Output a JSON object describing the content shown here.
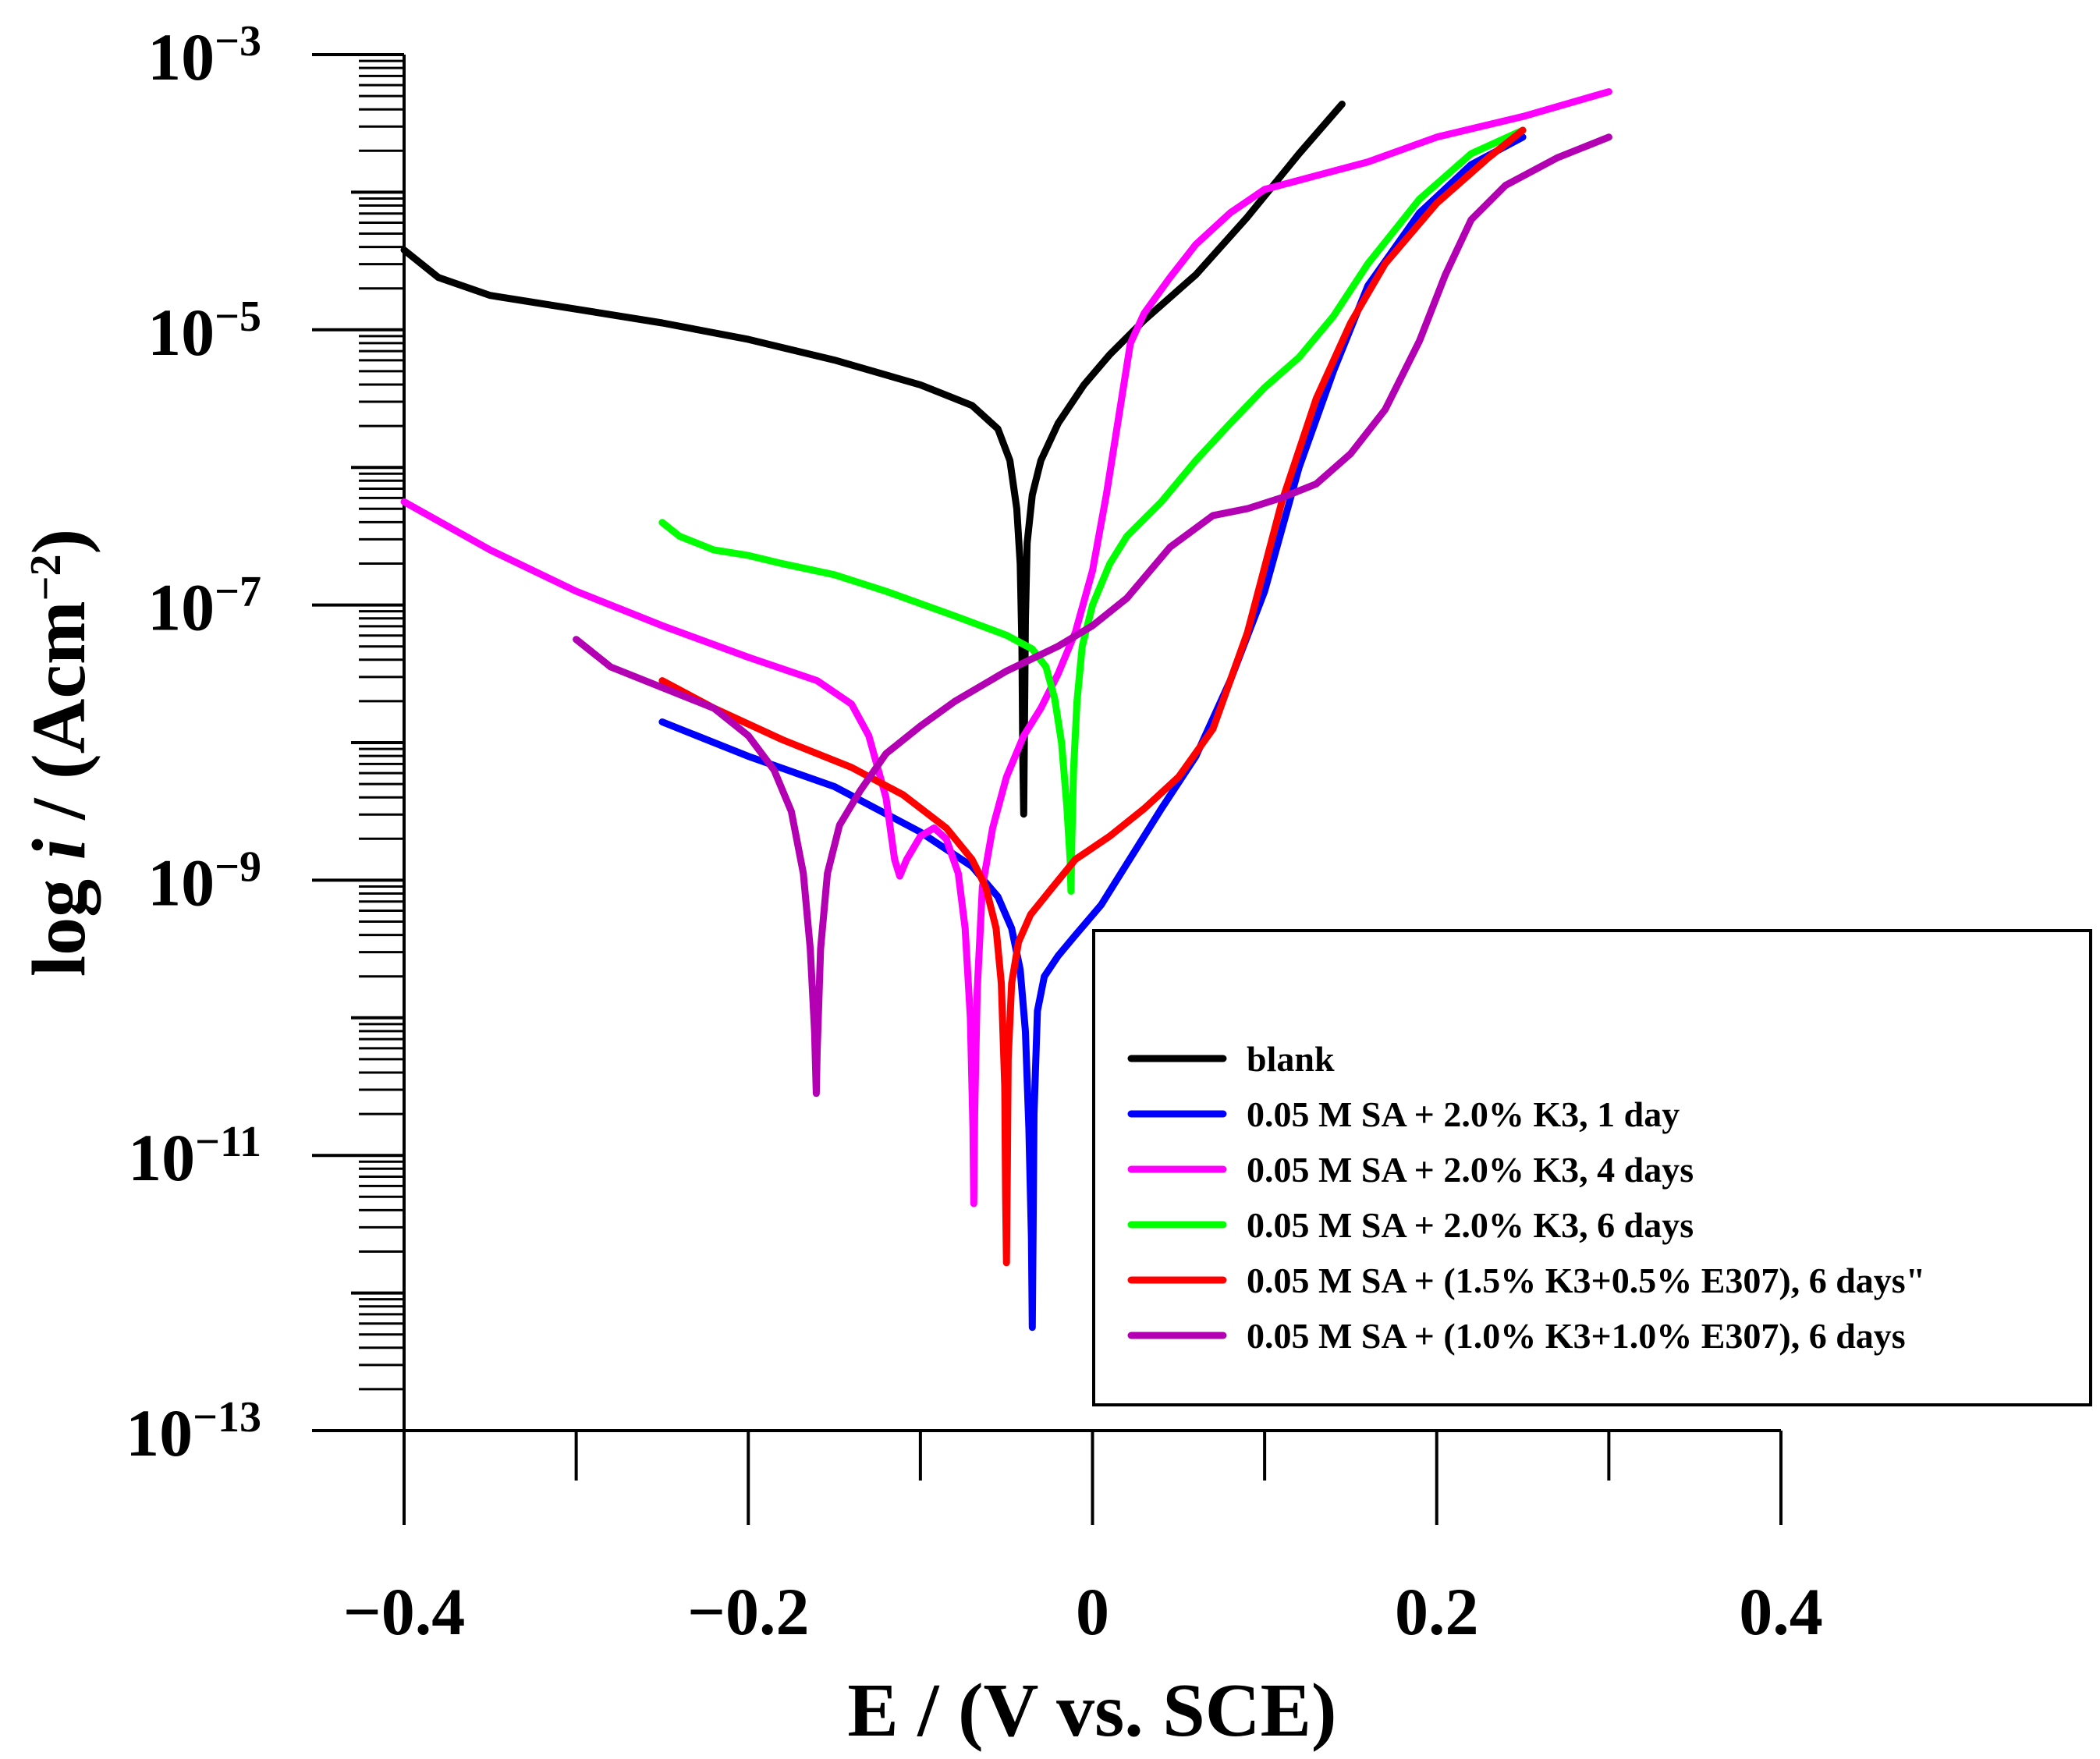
{
  "chart_data": {
    "type": "line",
    "title": "",
    "xlabel": "E / (V vs. SCE)",
    "ylabel_prefix": "log ",
    "ylabel_italic": "i",
    "ylabel_mid": " / (Acm",
    "ylabel_sup": "−2",
    "ylabel_suffix": ")",
    "xlim": [
      -0.4,
      0.4
    ],
    "ylim": [
      -13,
      -3
    ],
    "yscale": "log",
    "x_ticks": [
      -0.4,
      -0.2,
      0,
      0.2,
      0.4
    ],
    "x_tick_labels": [
      "−0.4",
      "−0.2",
      "0",
      "0.2",
      "0.4"
    ],
    "y_tick_exponents": [
      -3,
      -5,
      -7,
      -9,
      -11,
      -13
    ],
    "y_tick_labels": [
      {
        "base": "10",
        "exp": "−3"
      },
      {
        "base": "10",
        "exp": "−5"
      },
      {
        "base": "10",
        "exp": "−7"
      },
      {
        "base": "10",
        "exp": "−9"
      },
      {
        "base": "10",
        "exp": "−11"
      },
      {
        "base": "10",
        "exp": "−13"
      }
    ],
    "legend_position": "bottom-right",
    "series": [
      {
        "name": "blank",
        "color": "#000000",
        "points": [
          [
            -0.4,
            -4.42
          ],
          [
            -0.38,
            -4.62
          ],
          [
            -0.35,
            -4.75
          ],
          [
            -0.3,
            -4.85
          ],
          [
            -0.25,
            -4.95
          ],
          [
            -0.2,
            -5.07
          ],
          [
            -0.15,
            -5.22
          ],
          [
            -0.1,
            -5.4
          ],
          [
            -0.07,
            -5.55
          ],
          [
            -0.055,
            -5.72
          ],
          [
            -0.048,
            -5.95
          ],
          [
            -0.044,
            -6.3
          ],
          [
            -0.042,
            -6.7
          ],
          [
            -0.041,
            -7.3
          ],
          [
            -0.0405,
            -8.1
          ],
          [
            -0.04,
            -8.52
          ],
          [
            -0.0395,
            -7.8
          ],
          [
            -0.039,
            -7.1
          ],
          [
            -0.038,
            -6.55
          ],
          [
            -0.035,
            -6.2
          ],
          [
            -0.03,
            -5.95
          ],
          [
            -0.02,
            -5.68
          ],
          [
            -0.005,
            -5.4
          ],
          [
            0.01,
            -5.18
          ],
          [
            0.03,
            -4.93
          ],
          [
            0.06,
            -4.6
          ],
          [
            0.09,
            -4.18
          ],
          [
            0.12,
            -3.72
          ],
          [
            0.145,
            -3.36
          ]
        ]
      },
      {
        "name": "0.05 M SA + 2.0% K3, 1 day",
        "color": "#0000ff",
        "points": [
          [
            -0.25,
            -7.85
          ],
          [
            -0.2,
            -8.1
          ],
          [
            -0.15,
            -8.32
          ],
          [
            -0.1,
            -8.65
          ],
          [
            -0.07,
            -8.9
          ],
          [
            -0.055,
            -9.12
          ],
          [
            -0.047,
            -9.35
          ],
          [
            -0.042,
            -9.65
          ],
          [
            -0.039,
            -10.1
          ],
          [
            -0.037,
            -10.8
          ],
          [
            -0.0355,
            -11.6
          ],
          [
            -0.035,
            -12.25
          ],
          [
            -0.0345,
            -11.5
          ],
          [
            -0.034,
            -10.7
          ],
          [
            -0.032,
            -9.95
          ],
          [
            -0.028,
            -9.7
          ],
          [
            -0.02,
            -9.55
          ],
          [
            -0.01,
            -9.4
          ],
          [
            0.005,
            -9.18
          ],
          [
            0.02,
            -8.88
          ],
          [
            0.04,
            -8.48
          ],
          [
            0.06,
            -8.1
          ],
          [
            0.08,
            -7.55
          ],
          [
            0.1,
            -6.9
          ],
          [
            0.12,
            -6.0
          ],
          [
            0.14,
            -5.3
          ],
          [
            0.16,
            -4.68
          ],
          [
            0.19,
            -4.15
          ],
          [
            0.22,
            -3.8
          ],
          [
            0.25,
            -3.6
          ]
        ]
      },
      {
        "name": "0.05 M SA + 2.0% K3, 4 days",
        "color": "#ff00ff",
        "points": [
          [
            -0.4,
            -6.25
          ],
          [
            -0.35,
            -6.6
          ],
          [
            -0.3,
            -6.9
          ],
          [
            -0.25,
            -7.15
          ],
          [
            -0.2,
            -7.38
          ],
          [
            -0.16,
            -7.55
          ],
          [
            -0.14,
            -7.72
          ],
          [
            -0.13,
            -7.95
          ],
          [
            -0.12,
            -8.4
          ],
          [
            -0.115,
            -8.85
          ],
          [
            -0.112,
            -8.97
          ],
          [
            -0.108,
            -8.85
          ],
          [
            -0.1,
            -8.68
          ],
          [
            -0.092,
            -8.62
          ],
          [
            -0.085,
            -8.7
          ],
          [
            -0.078,
            -8.95
          ],
          [
            -0.074,
            -9.35
          ],
          [
            -0.071,
            -10.0
          ],
          [
            -0.0695,
            -10.8
          ],
          [
            -0.069,
            -11.35
          ],
          [
            -0.0685,
            -10.7
          ],
          [
            -0.067,
            -9.8
          ],
          [
            -0.064,
            -9.05
          ],
          [
            -0.058,
            -8.62
          ],
          [
            -0.05,
            -8.25
          ],
          [
            -0.04,
            -7.95
          ],
          [
            -0.03,
            -7.75
          ],
          [
            -0.02,
            -7.5
          ],
          [
            -0.01,
            -7.2
          ],
          [
            0.0,
            -6.75
          ],
          [
            0.008,
            -6.2
          ],
          [
            0.015,
            -5.65
          ],
          [
            0.022,
            -5.1
          ],
          [
            0.03,
            -4.88
          ],
          [
            0.045,
            -4.62
          ],
          [
            0.06,
            -4.38
          ],
          [
            0.08,
            -4.15
          ],
          [
            0.1,
            -3.98
          ],
          [
            0.13,
            -3.88
          ],
          [
            0.16,
            -3.78
          ],
          [
            0.2,
            -3.6
          ],
          [
            0.25,
            -3.45
          ],
          [
            0.3,
            -3.27
          ]
        ]
      },
      {
        "name": "0.05 M SA + 2.0% K3, 6 days",
        "color": "#00ff00",
        "points": [
          [
            -0.25,
            -6.4
          ],
          [
            -0.24,
            -6.5
          ],
          [
            -0.22,
            -6.6
          ],
          [
            -0.2,
            -6.64
          ],
          [
            -0.18,
            -6.7
          ],
          [
            -0.15,
            -6.78
          ],
          [
            -0.12,
            -6.9
          ],
          [
            -0.08,
            -7.08
          ],
          [
            -0.05,
            -7.22
          ],
          [
            -0.035,
            -7.32
          ],
          [
            -0.027,
            -7.45
          ],
          [
            -0.022,
            -7.68
          ],
          [
            -0.018,
            -8.0
          ],
          [
            -0.015,
            -8.45
          ],
          [
            -0.013,
            -8.85
          ],
          [
            -0.0125,
            -9.08
          ],
          [
            -0.012,
            -8.7
          ],
          [
            -0.011,
            -8.2
          ],
          [
            -0.009,
            -7.7
          ],
          [
            -0.006,
            -7.3
          ],
          [
            0.0,
            -7.0
          ],
          [
            0.01,
            -6.7
          ],
          [
            0.02,
            -6.5
          ],
          [
            0.04,
            -6.25
          ],
          [
            0.06,
            -5.95
          ],
          [
            0.08,
            -5.68
          ],
          [
            0.1,
            -5.42
          ],
          [
            0.12,
            -5.2
          ],
          [
            0.14,
            -4.9
          ],
          [
            0.16,
            -4.52
          ],
          [
            0.19,
            -4.05
          ],
          [
            0.22,
            -3.72
          ],
          [
            0.25,
            -3.55
          ]
        ]
      },
      {
        "name": "0.05 M SA + (1.5% K3+0.5% E307), 6 days\"",
        "color": "#ff0000",
        "points": [
          [
            -0.25,
            -7.55
          ],
          [
            -0.22,
            -7.75
          ],
          [
            -0.18,
            -7.98
          ],
          [
            -0.14,
            -8.18
          ],
          [
            -0.11,
            -8.38
          ],
          [
            -0.085,
            -8.62
          ],
          [
            -0.07,
            -8.85
          ],
          [
            -0.062,
            -9.05
          ],
          [
            -0.056,
            -9.35
          ],
          [
            -0.053,
            -9.75
          ],
          [
            -0.051,
            -10.5
          ],
          [
            -0.0505,
            -11.3
          ],
          [
            -0.05,
            -11.78
          ],
          [
            -0.0495,
            -11.1
          ],
          [
            -0.049,
            -10.3
          ],
          [
            -0.047,
            -9.75
          ],
          [
            -0.043,
            -9.45
          ],
          [
            -0.036,
            -9.25
          ],
          [
            -0.025,
            -9.08
          ],
          [
            -0.01,
            -8.85
          ],
          [
            0.01,
            -8.68
          ],
          [
            0.03,
            -8.48
          ],
          [
            0.05,
            -8.25
          ],
          [
            0.07,
            -7.9
          ],
          [
            0.09,
            -7.2
          ],
          [
            0.11,
            -6.25
          ],
          [
            0.13,
            -5.5
          ],
          [
            0.15,
            -4.95
          ],
          [
            0.17,
            -4.52
          ],
          [
            0.2,
            -4.08
          ],
          [
            0.23,
            -3.75
          ],
          [
            0.25,
            -3.55
          ]
        ]
      },
      {
        "name": "0.05 M SA + (1.0% K3+1.0% E307), 6 days",
        "color": "#b300b3",
        "points": [
          [
            -0.3,
            -7.25
          ],
          [
            -0.28,
            -7.45
          ],
          [
            -0.25,
            -7.6
          ],
          [
            -0.22,
            -7.75
          ],
          [
            -0.2,
            -7.95
          ],
          [
            -0.185,
            -8.2
          ],
          [
            -0.175,
            -8.5
          ],
          [
            -0.168,
            -8.95
          ],
          [
            -0.164,
            -9.5
          ],
          [
            -0.1615,
            -10.1
          ],
          [
            -0.1605,
            -10.55
          ],
          [
            -0.16,
            -10.25
          ],
          [
            -0.158,
            -9.5
          ],
          [
            -0.154,
            -8.95
          ],
          [
            -0.147,
            -8.6
          ],
          [
            -0.135,
            -8.35
          ],
          [
            -0.12,
            -8.08
          ],
          [
            -0.1,
            -7.88
          ],
          [
            -0.08,
            -7.7
          ],
          [
            -0.05,
            -7.48
          ],
          [
            -0.02,
            -7.3
          ],
          [
            0.0,
            -7.15
          ],
          [
            0.02,
            -6.95
          ],
          [
            0.045,
            -6.58
          ],
          [
            0.07,
            -6.35
          ],
          [
            0.09,
            -6.3
          ],
          [
            0.11,
            -6.22
          ],
          [
            0.13,
            -6.12
          ],
          [
            0.15,
            -5.9
          ],
          [
            0.17,
            -5.58
          ],
          [
            0.19,
            -5.08
          ],
          [
            0.205,
            -4.6
          ],
          [
            0.22,
            -4.2
          ],
          [
            0.24,
            -3.95
          ],
          [
            0.27,
            -3.75
          ],
          [
            0.3,
            -3.6
          ]
        ]
      }
    ]
  }
}
